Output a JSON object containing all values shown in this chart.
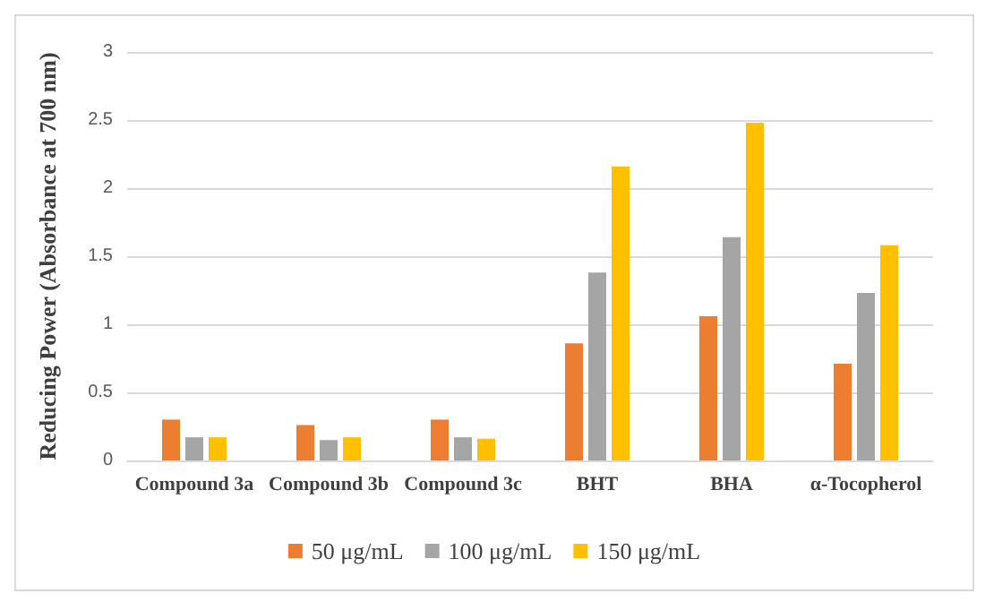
{
  "chart_data": {
    "type": "bar",
    "ylabel": "Reducing Power (Absorbance at 700 nm)",
    "categories": [
      "Compound 3a",
      "Compound 3b",
      "Compound 3c",
      "BHT",
      "BHA",
      "α-Tocopherol"
    ],
    "series": [
      {
        "name": "50 μg/mL",
        "color": "#ed7d31",
        "values": [
          0.3,
          0.26,
          0.3,
          0.86,
          1.06,
          0.71
        ]
      },
      {
        "name": "100 μg/mL",
        "color": "#a5a5a5",
        "values": [
          0.17,
          0.15,
          0.17,
          1.38,
          1.64,
          1.23
        ]
      },
      {
        "name": "150 μg/mL",
        "color": "#ffc000",
        "values": [
          0.17,
          0.17,
          0.16,
          2.16,
          2.48,
          1.58
        ]
      }
    ],
    "ylim": [
      0,
      3
    ],
    "yticks": [
      0,
      0.5,
      1,
      1.5,
      2,
      2.5,
      3
    ],
    "grid": "y",
    "legend": "bottom"
  }
}
